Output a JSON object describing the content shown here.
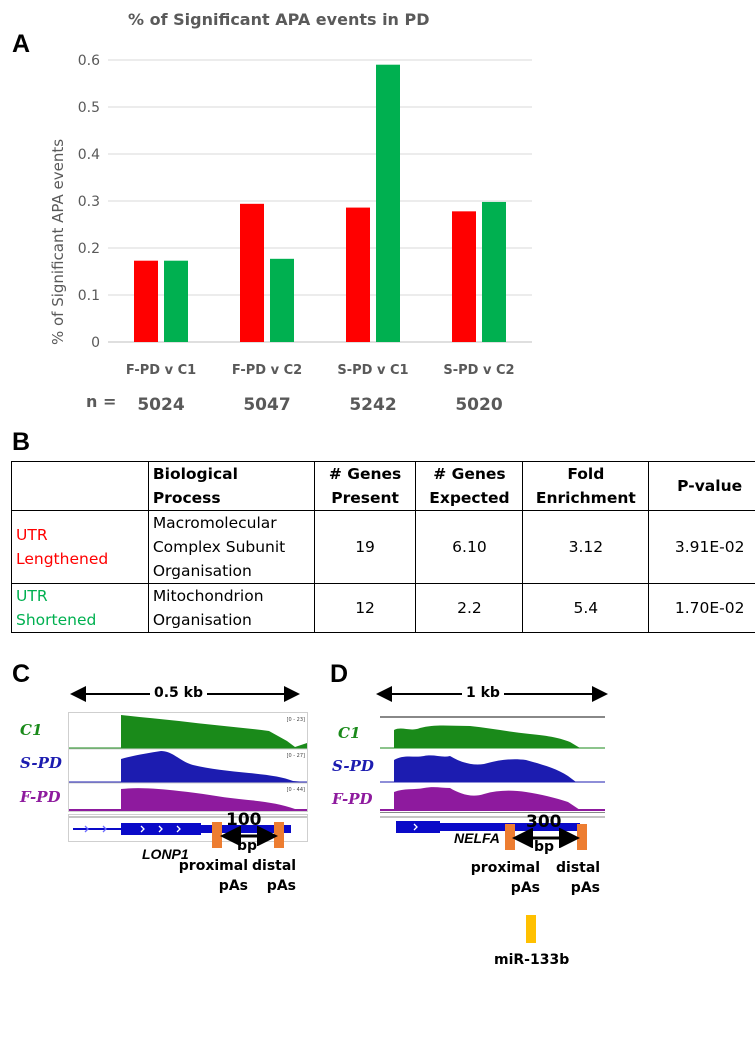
{
  "panels": {
    "a": "A",
    "b": "B",
    "c": "C",
    "d": "D"
  },
  "chart_data": {
    "type": "bar",
    "title": "% of Significant APA events in PD",
    "ylabel": "% of Significant APA events",
    "xlabel": "",
    "ylim": [
      0,
      0.6
    ],
    "yticks": [
      "0",
      "0.1",
      "0.2",
      "0.3",
      "0.4",
      "0.5",
      "0.6"
    ],
    "grid": true,
    "categories": [
      "F-PD v C1",
      "F-PD v C2",
      "S-PD v C1",
      "S-PD v C2"
    ],
    "category_labels_printed": [
      "F-PD v C1",
      "F-PD v C2",
      "S-PD v C1",
      "S-PD v C2"
    ],
    "series": [
      {
        "color": "#ff0000",
        "values": [
          0.173,
          0.294,
          0.286,
          0.278
        ]
      },
      {
        "color": "#00b050",
        "values": [
          0.173,
          0.177,
          0.59,
          0.298
        ]
      }
    ],
    "n_prefix": "n =",
    "n_values": [
      "5024",
      "5047",
      "5242",
      "5020"
    ]
  },
  "table": {
    "headers": [
      "",
      [
        "Biological",
        "Process"
      ],
      [
        "# Genes",
        "Present"
      ],
      [
        "# Genes",
        "Expected"
      ],
      [
        "Fold",
        "Enrichment"
      ],
      "P-value"
    ],
    "rows": [
      {
        "label": [
          "UTR",
          "Lengthened"
        ],
        "label_color": "#ff0000",
        "process": [
          "Macromolecular",
          "Complex Subunit",
          "Organisation"
        ],
        "present": "19",
        "expected": "6.10",
        "fold": "3.12",
        "pvalue": "3.91E-02"
      },
      {
        "label": [
          "UTR",
          "Shortened"
        ],
        "label_color": "#00b050",
        "process": [
          "Mitochondrion",
          "Organisation"
        ],
        "present": "12",
        "expected": "2.2",
        "fold": "5.4",
        "pvalue": "1.70E-02"
      }
    ]
  },
  "panel_c": {
    "scale": "0.5 kb",
    "tracks": [
      {
        "label": "C1",
        "color": "#1a8a1a",
        "range": "[0 - 23]"
      },
      {
        "label": "S-PD",
        "color": "#1c1cb0",
        "range": "[0 - 27]"
      },
      {
        "label": "F-PD",
        "color": "#8e1a9e",
        "range": "[0 - 44]"
      }
    ],
    "gene": "LONP1",
    "distance": "100",
    "distance_unit": "bp",
    "proximal": [
      "proximal",
      "pAs"
    ],
    "distal": [
      "distal",
      "pAs"
    ]
  },
  "panel_d": {
    "scale": "1 kb",
    "tracks": [
      {
        "label": "C1",
        "color": "#1a8a1a"
      },
      {
        "label": "S-PD",
        "color": "#1c1cb0"
      },
      {
        "label": "F-PD",
        "color": "#8e1a9e"
      }
    ],
    "gene": "NELFA",
    "distance": "300",
    "distance_unit": "bp",
    "proximal": [
      "proximal",
      "pAs"
    ],
    "distal": [
      "distal",
      "pAs"
    ],
    "mirna": "miR-133b"
  },
  "colors": {
    "pas_marker": "#ed7d31",
    "mirna_marker": "#ffc000",
    "gene_model": "#0a0ac8"
  }
}
